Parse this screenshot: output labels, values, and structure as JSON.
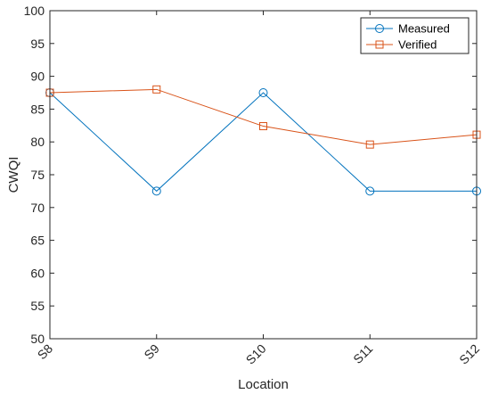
{
  "chart_data": {
    "type": "line",
    "title": "",
    "xlabel": "Location",
    "ylabel": "CWQI",
    "categories": [
      "S8",
      "S9",
      "S10",
      "S11",
      "S12"
    ],
    "ylim": [
      50,
      100
    ],
    "yticks": [
      50,
      55,
      60,
      65,
      70,
      75,
      80,
      85,
      90,
      95,
      100
    ],
    "grid": false,
    "legend_position": "top-right",
    "series": [
      {
        "name": "Measured",
        "values": [
          87.5,
          72.5,
          87.5,
          72.5,
          72.5
        ],
        "color": "#0072BD",
        "marker": "circle"
      },
      {
        "name": "Verified",
        "values": [
          87.5,
          88.0,
          82.4,
          79.6,
          81.1
        ],
        "color": "#D95319",
        "marker": "square"
      }
    ]
  }
}
